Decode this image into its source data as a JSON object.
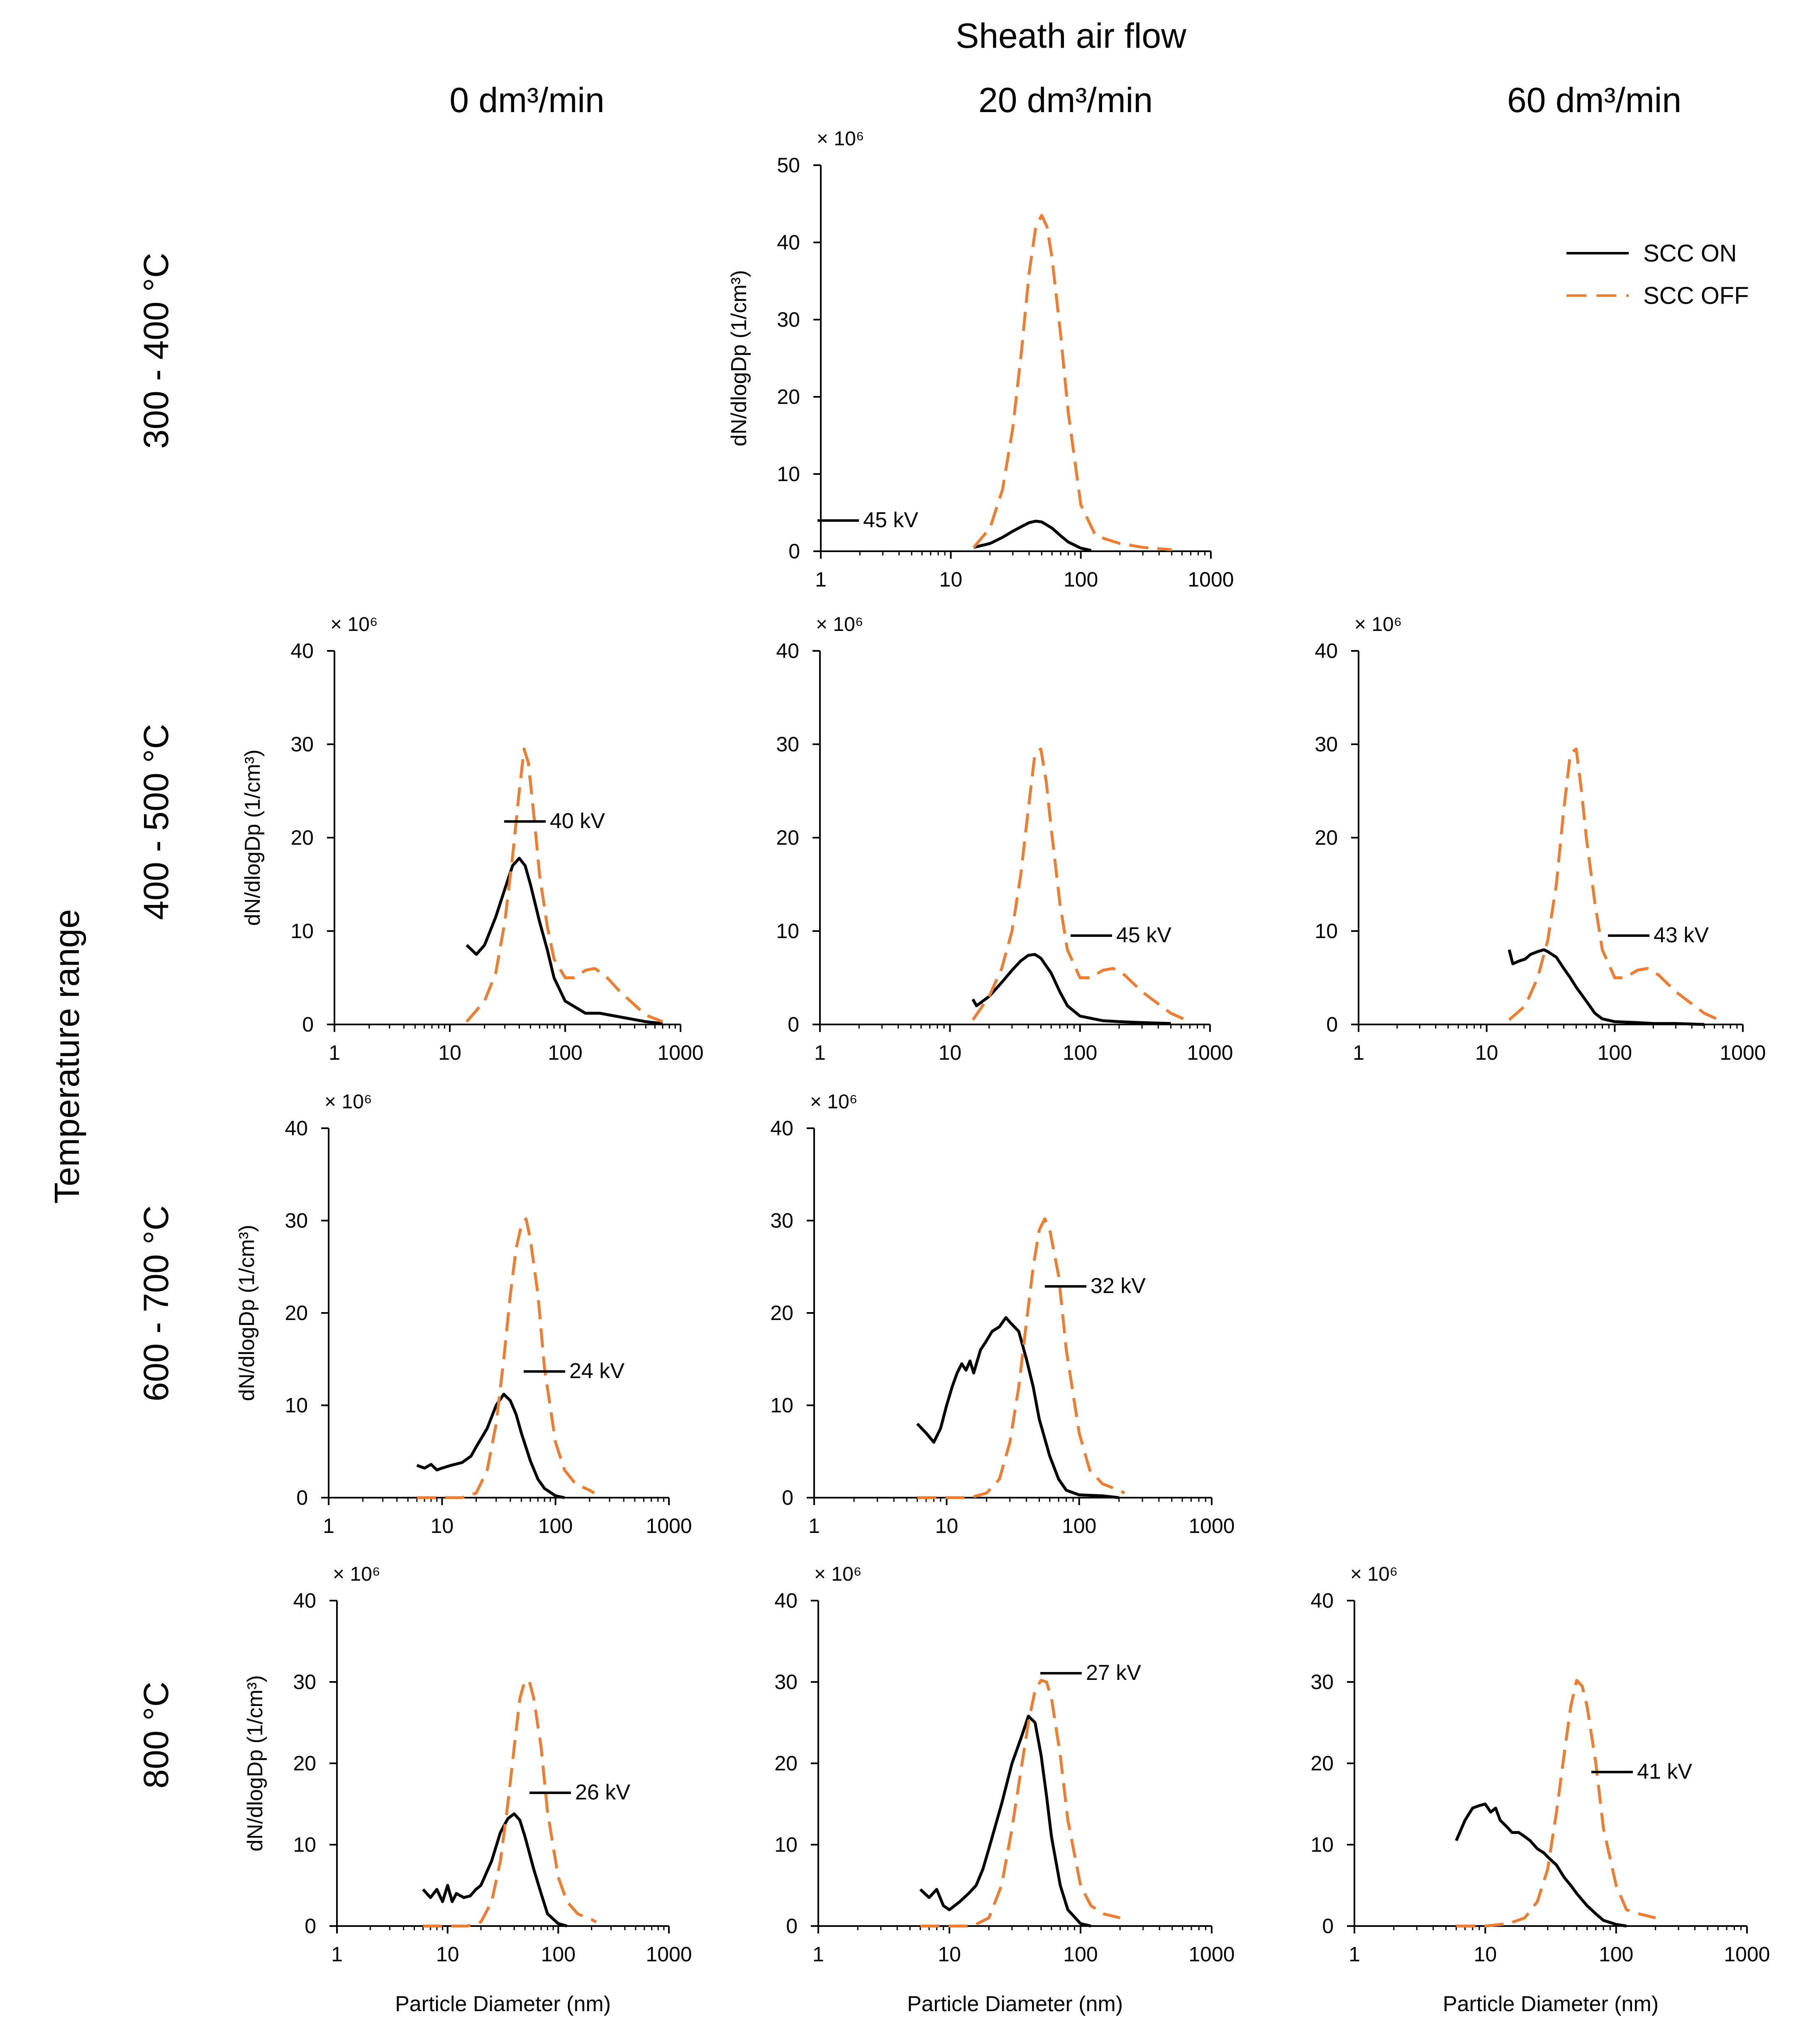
{
  "header": {
    "top_title": "Sheath air flow",
    "columns": [
      "0 dm³/min",
      "20 dm³/min",
      "60 dm³/min"
    ],
    "rows": [
      "300 - 400 °C",
      "400 - 500 °C",
      "600 - 700 °C",
      "800 °C"
    ],
    "row_axis_title": "Temperature range"
  },
  "legend": {
    "on": "SCC ON",
    "off": "SCC OFF"
  },
  "colors": {
    "on": "#000000",
    "off": "#ED7D31",
    "axis": "#000000"
  },
  "common": {
    "xlabel": "Particle Diameter (nm)",
    "ylabel": "dN/dlogDp (1/cm³)",
    "multiplier": "× 10⁶",
    "x_ticks": [
      "1",
      "10",
      "100",
      "1000"
    ]
  },
  "chart_data": [
    {
      "type": "line",
      "panel": "300-400C / 20 dm3/min",
      "kv": "45 kV",
      "xscale": "log",
      "xlim": [
        1,
        1000
      ],
      "ylim": [
        0,
        50
      ],
      "y_ticks": [
        "0",
        "10",
        "20",
        "30",
        "40",
        "50"
      ],
      "show_xlabel": false,
      "show_ylabel": true,
      "series": [
        {
          "name": "SCC ON",
          "x": [
            15,
            20,
            25,
            30,
            35,
            40,
            45,
            50,
            60,
            70,
            80,
            100,
            120
          ],
          "y": [
            0.5,
            1.0,
            1.8,
            2.6,
            3.2,
            3.7,
            3.9,
            3.8,
            3.0,
            2.0,
            1.2,
            0.4,
            0.1
          ]
        },
        {
          "name": "SCC OFF",
          "x": [
            15,
            20,
            25,
            30,
            35,
            40,
            45,
            50,
            55,
            60,
            70,
            80,
            100,
            130,
            200,
            300,
            500
          ],
          "y": [
            0.5,
            3,
            8,
            16,
            26,
            36,
            42,
            43.5,
            42,
            38,
            28,
            18,
            6,
            2,
            1,
            0.5,
            0.2
          ]
        }
      ]
    },
    {
      "type": "line",
      "panel": "400-500C / 0 dm3/min",
      "kv": "40 kV",
      "xscale": "log",
      "xlim": [
        1,
        1000
      ],
      "ylim": [
        0,
        40
      ],
      "y_ticks": [
        "0",
        "10",
        "20",
        "30",
        "40"
      ],
      "show_xlabel": false,
      "show_ylabel": true,
      "series": [
        {
          "name": "SCC ON",
          "x": [
            14,
            17,
            20,
            25,
            30,
            35,
            40,
            45,
            50,
            60,
            70,
            80,
            100,
            150,
            200,
            300,
            500,
            700
          ],
          "y": [
            8.5,
            7.5,
            8.5,
            11.5,
            14.5,
            17,
            17.8,
            17,
            15,
            11,
            8,
            5,
            2.5,
            1.2,
            1.2,
            0.8,
            0.3,
            0.1
          ]
        },
        {
          "name": "SCC OFF",
          "x": [
            14,
            17,
            20,
            25,
            30,
            35,
            40,
            44,
            48,
            55,
            60,
            70,
            80,
            100,
            120,
            150,
            180,
            220,
            300,
            500,
            700
          ],
          "y": [
            0.3,
            1.5,
            2.5,
            5.5,
            11,
            18,
            25,
            29.5,
            28,
            21,
            16,
            10.5,
            7,
            5,
            5,
            5.8,
            6,
            5.3,
            3.5,
            1,
            0.3
          ]
        }
      ]
    },
    {
      "type": "line",
      "panel": "400-500C / 20 dm3/min",
      "kv": "45 kV",
      "xscale": "log",
      "xlim": [
        1,
        1000
      ],
      "ylim": [
        0,
        40
      ],
      "y_ticks": [
        "0",
        "10",
        "20",
        "30",
        "40"
      ],
      "show_xlabel": false,
      "show_ylabel": false,
      "series": [
        {
          "name": "SCC ON",
          "x": [
            15,
            16,
            20,
            25,
            30,
            35,
            40,
            45,
            50,
            60,
            70,
            80,
            100,
            150,
            200,
            300,
            500
          ],
          "y": [
            2.7,
            2,
            3,
            4.5,
            5.8,
            6.8,
            7.4,
            7.5,
            7.1,
            5.5,
            3.5,
            2,
            0.9,
            0.4,
            0.3,
            0.2,
            0.1
          ]
        },
        {
          "name": "SCC OFF",
          "x": [
            15,
            20,
            25,
            30,
            35,
            40,
            45,
            50,
            55,
            60,
            70,
            80,
            100,
            120,
            150,
            180,
            220,
            300,
            500,
            700
          ],
          "y": [
            0.5,
            3,
            6,
            10,
            16,
            23,
            29,
            29.5,
            26,
            21,
            13,
            8,
            5,
            5,
            5.8,
            6,
            5.3,
            3.5,
            1.2,
            0.3
          ]
        }
      ]
    },
    {
      "type": "line",
      "panel": "400-500C / 60 dm3/min",
      "kv": "43 kV",
      "xscale": "log",
      "xlim": [
        1,
        1000
      ],
      "ylim": [
        0,
        40
      ],
      "y_ticks": [
        "0",
        "10",
        "20",
        "30",
        "40"
      ],
      "show_xlabel": false,
      "show_ylabel": false,
      "series": [
        {
          "name": "SCC ON",
          "x": [
            15,
            16,
            18,
            20,
            22,
            25,
            28,
            30,
            35,
            40,
            45,
            50,
            60,
            70,
            80,
            100,
            150,
            200,
            300,
            500
          ],
          "y": [
            8,
            6.5,
            6.8,
            7,
            7.5,
            7.8,
            8,
            7.8,
            7.2,
            6,
            5,
            4,
            2.5,
            1.2,
            0.6,
            0.3,
            0.2,
            0.1,
            0.1,
            0
          ]
        },
        {
          "name": "SCC OFF",
          "x": [
            15,
            20,
            25,
            30,
            35,
            40,
            45,
            50,
            55,
            60,
            70,
            80,
            100,
            120,
            150,
            180,
            220,
            300,
            500,
            700
          ],
          "y": [
            0.5,
            2,
            5,
            9,
            15,
            23,
            29,
            29.5,
            25,
            20,
            13,
            8,
            5,
            5,
            5.8,
            6,
            5.3,
            3.5,
            1.2,
            0.3
          ]
        }
      ]
    },
    {
      "type": "line",
      "panel": "600-700C / 0 dm3/min",
      "kv": "24 kV",
      "xscale": "log",
      "xlim": [
        1,
        1000
      ],
      "ylim": [
        0,
        40
      ],
      "y_ticks": [
        "0",
        "10",
        "20",
        "30",
        "40"
      ],
      "show_xlabel": false,
      "show_ylabel": true,
      "series": [
        {
          "name": "SCC ON",
          "x": [
            6,
            7,
            8,
            9,
            10,
            12,
            15,
            18,
            20,
            25,
            30,
            35,
            40,
            45,
            50,
            60,
            70,
            80,
            100,
            120
          ],
          "y": [
            3.5,
            3.2,
            3.6,
            3,
            3.2,
            3.5,
            3.8,
            4.5,
            5.5,
            7.5,
            10,
            11.2,
            10.5,
            9,
            7,
            4,
            2,
            1,
            0.2,
            0
          ]
        },
        {
          "name": "SCC OFF",
          "x": [
            6,
            10,
            15,
            20,
            25,
            30,
            35,
            40,
            45,
            50,
            55,
            60,
            70,
            80,
            100,
            120,
            150,
            200,
            220
          ],
          "y": [
            0,
            0,
            0,
            0.5,
            3,
            8,
            15,
            22,
            27,
            29.5,
            30.2,
            28,
            22,
            14,
            6,
            3,
            1.5,
            0.8,
            0.5
          ]
        }
      ]
    },
    {
      "type": "line",
      "panel": "600-700C / 20 dm3/min",
      "kv": "32 kV",
      "xscale": "log",
      "xlim": [
        1,
        1000
      ],
      "ylim": [
        0,
        40
      ],
      "y_ticks": [
        "0",
        "10",
        "20",
        "30",
        "40"
      ],
      "show_xlabel": false,
      "show_ylabel": false,
      "series": [
        {
          "name": "SCC ON",
          "x": [
            6,
            7,
            8,
            9,
            10,
            11,
            12,
            13,
            14,
            15,
            16,
            18,
            20,
            22,
            25,
            28,
            30,
            35,
            40,
            45,
            50,
            60,
            70,
            80,
            100,
            150,
            200
          ],
          "y": [
            8,
            7,
            6,
            7.5,
            10,
            12,
            13.5,
            14.5,
            13.8,
            14.8,
            13.5,
            16,
            17,
            18,
            18.5,
            19.5,
            19,
            18,
            15,
            12,
            8.5,
            4.5,
            2,
            0.8,
            0.3,
            0.2,
            0
          ]
        },
        {
          "name": "SCC OFF",
          "x": [
            6,
            10,
            15,
            20,
            25,
            30,
            35,
            40,
            45,
            50,
            55,
            60,
            70,
            80,
            100,
            120,
            150,
            200,
            220
          ],
          "y": [
            0,
            0,
            0,
            0.5,
            2,
            6,
            12,
            19,
            25,
            29,
            30.2,
            29,
            24,
            16,
            7,
            3,
            1.5,
            0.8,
            0.5
          ]
        }
      ]
    },
    {
      "type": "line",
      "panel": "800C / 0 dm3/min",
      "kv": "26 kV",
      "xscale": "log",
      "xlim": [
        1,
        1000
      ],
      "ylim": [
        0,
        40
      ],
      "y_ticks": [
        "0",
        "10",
        "20",
        "30",
        "40"
      ],
      "show_xlabel": true,
      "show_ylabel": true,
      "series": [
        {
          "name": "SCC ON",
          "x": [
            6,
            7,
            8,
            9,
            10,
            11,
            12,
            14,
            16,
            18,
            20,
            25,
            30,
            35,
            40,
            45,
            50,
            60,
            70,
            80,
            100,
            120
          ],
          "y": [
            4.5,
            3.5,
            4.5,
            3,
            5,
            3,
            4,
            3.5,
            3.7,
            4.5,
            5,
            8,
            11.5,
            13.2,
            13.8,
            13,
            11,
            7,
            4,
            1.5,
            0.3,
            0
          ]
        },
        {
          "name": "SCC OFF",
          "x": [
            6,
            10,
            15,
            20,
            25,
            30,
            35,
            40,
            45,
            50,
            55,
            60,
            70,
            80,
            100,
            120,
            150,
            200,
            220
          ],
          "y": [
            0,
            0,
            0,
            0.5,
            3,
            8,
            15,
            22,
            28,
            30.2,
            30,
            28,
            22,
            14,
            6,
            3,
            1.5,
            0.8,
            0.5
          ]
        }
      ]
    },
    {
      "type": "line",
      "panel": "800C / 20 dm3/min",
      "kv": "27 kV",
      "xscale": "log",
      "xlim": [
        1,
        1000
      ],
      "ylim": [
        0,
        40
      ],
      "y_ticks": [
        "0",
        "10",
        "20",
        "30",
        "40"
      ],
      "show_xlabel": true,
      "show_ylabel": false,
      "series": [
        {
          "name": "SCC ON",
          "x": [
            6,
            7,
            8,
            9,
            10,
            12,
            14,
            16,
            18,
            20,
            25,
            30,
            35,
            40,
            45,
            50,
            55,
            60,
            70,
            80,
            100,
            120
          ],
          "y": [
            4.5,
            3.5,
            4.5,
            2.5,
            2,
            3,
            4,
            5,
            7,
            9.5,
            15,
            20,
            23,
            25.8,
            25,
            21,
            16,
            11,
            5,
            2,
            0.3,
            0
          ]
        },
        {
          "name": "SCC OFF",
          "x": [
            6,
            10,
            15,
            20,
            25,
            30,
            35,
            40,
            45,
            50,
            55,
            60,
            70,
            80,
            100,
            120,
            150,
            200
          ],
          "y": [
            0,
            0,
            0,
            1,
            5,
            12,
            19,
            25,
            29,
            30.2,
            30,
            28,
            21,
            13,
            5,
            2.5,
            1.5,
            1
          ]
        }
      ]
    },
    {
      "type": "line",
      "panel": "800C / 60 dm3/min",
      "kv": "41 kV",
      "xscale": "log",
      "xlim": [
        1,
        1000
      ],
      "ylim": [
        0,
        40
      ],
      "y_ticks": [
        "0",
        "10",
        "20",
        "30",
        "40"
      ],
      "show_xlabel": true,
      "show_ylabel": false,
      "series": [
        {
          "name": "SCC ON",
          "x": [
            6,
            7,
            8,
            9,
            10,
            11,
            12,
            13,
            14,
            15,
            16,
            18,
            20,
            22,
            25,
            28,
            30,
            35,
            40,
            45,
            50,
            60,
            70,
            80,
            100,
            120
          ],
          "y": [
            10.5,
            13,
            14.5,
            14.8,
            15,
            14,
            14.5,
            13,
            12.5,
            12,
            11.5,
            11.5,
            11,
            10.5,
            9.5,
            9,
            8.5,
            7.5,
            6,
            5,
            4,
            2.5,
            1.5,
            0.7,
            0.2,
            0
          ]
        },
        {
          "name": "SCC OFF",
          "x": [
            6,
            10,
            15,
            20,
            25,
            30,
            35,
            40,
            45,
            50,
            55,
            60,
            70,
            80,
            100,
            120,
            150,
            200
          ],
          "y": [
            0,
            0,
            0.3,
            1,
            3,
            7,
            14,
            21,
            27,
            30.2,
            29.5,
            27,
            20,
            12,
            5,
            2,
            1.5,
            1
          ]
        }
      ]
    }
  ]
}
